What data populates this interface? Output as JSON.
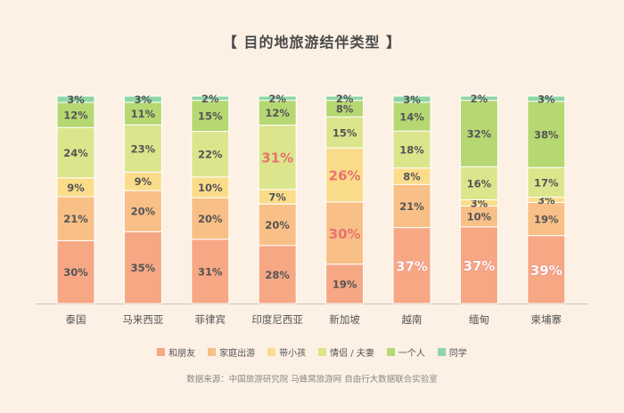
{
  "title": "【 目的地旅游结伴类型 】",
  "source": "数据来源：中国旅游研究院 马蜂窝旅游网 自由行大数据联合实验室",
  "colors": {
    "和朋友": "#f6a784",
    "家庭出游": "#f8bf86",
    "带小孩": "#fbdc8a",
    "情侣 / 夫妻": "#dce58c",
    "一个人": "#b6d873",
    "同学": "#8fd6a6",
    "highlight": "#e8736f",
    "label": "#555555",
    "axis": "#c8c2b8"
  },
  "chart_data": {
    "type": "bar",
    "stacked": true,
    "title": "【 目的地旅游结伴类型 】",
    "categories": [
      "泰国",
      "马来西亚",
      "菲律宾",
      "印度尼西亚",
      "新加坡",
      "越南",
      "缅甸",
      "柬埔寨"
    ],
    "series": [
      {
        "name": "和朋友",
        "values": [
          30,
          35,
          31,
          28,
          19,
          37,
          37,
          39
        ]
      },
      {
        "name": "家庭出游",
        "values": [
          21,
          20,
          20,
          20,
          30,
          21,
          10,
          19
        ]
      },
      {
        "name": "带小孩",
        "values": [
          9,
          9,
          10,
          7,
          26,
          8,
          3,
          3
        ]
      },
      {
        "name": "情侣 / 夫妻",
        "values": [
          24,
          23,
          22,
          31,
          15,
          18,
          16,
          17
        ]
      },
      {
        "name": "一个人",
        "values": [
          12,
          11,
          15,
          12,
          8,
          14,
          32,
          38
        ]
      },
      {
        "name": "同学",
        "values": [
          3,
          3,
          2,
          2,
          2,
          3,
          2,
          3
        ]
      }
    ],
    "highlighted": [
      {
        "category": "印度尼西亚",
        "series": "情侣 / 夫妻"
      },
      {
        "category": "新加坡",
        "series": "家庭出游"
      },
      {
        "category": "新加坡",
        "series": "带小孩"
      },
      {
        "category": "越南",
        "series": "和朋友"
      },
      {
        "category": "缅甸",
        "series": "和朋友"
      },
      {
        "category": "柬埔寨",
        "series": "和朋友"
      }
    ],
    "value_suffix": "%",
    "legend_position": "bottom",
    "grid": false
  }
}
